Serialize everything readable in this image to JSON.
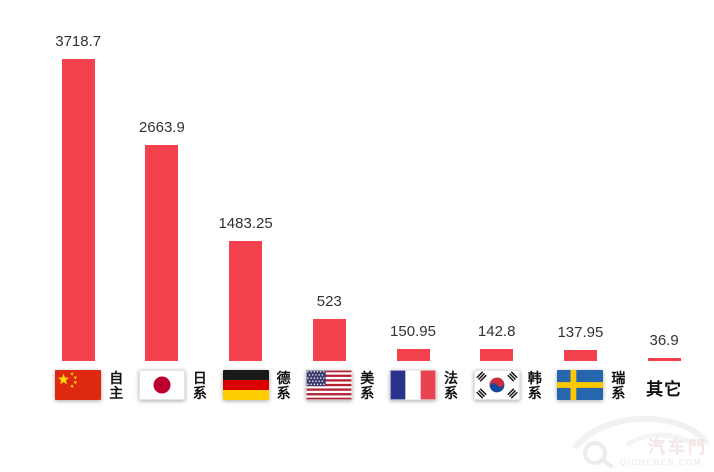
{
  "chart_data": {
    "type": "bar",
    "title": "",
    "xlabel": "",
    "ylabel": "",
    "categories": [
      "自主",
      "日系",
      "德系",
      "美系",
      "法系",
      "韩系",
      "瑞系",
      "其它"
    ],
    "values": [
      3718.7,
      2663.9,
      1483.25,
      523,
      150.95,
      142.8,
      137.95,
      36.9
    ],
    "value_labels": [
      "3718.7",
      "2663.9",
      "1483.25",
      "523",
      "150.95",
      "142.8",
      "137.95",
      "36.9"
    ],
    "flag_icons": [
      "china-flag",
      "japan-flag",
      "germany-flag",
      "usa-flag",
      "france-flag",
      "south-korea-flag",
      "sweden-flag",
      ""
    ],
    "ylim": [
      0,
      3718.7
    ],
    "grid": false,
    "legend": false,
    "bar_color": "#F4414E",
    "value_label_color": "#333333",
    "category_label_color": "#111111",
    "background_color": "#FFFFFF"
  },
  "watermark": {
    "brand": "汽车門",
    "domain": "QICHEMEN.COM"
  }
}
